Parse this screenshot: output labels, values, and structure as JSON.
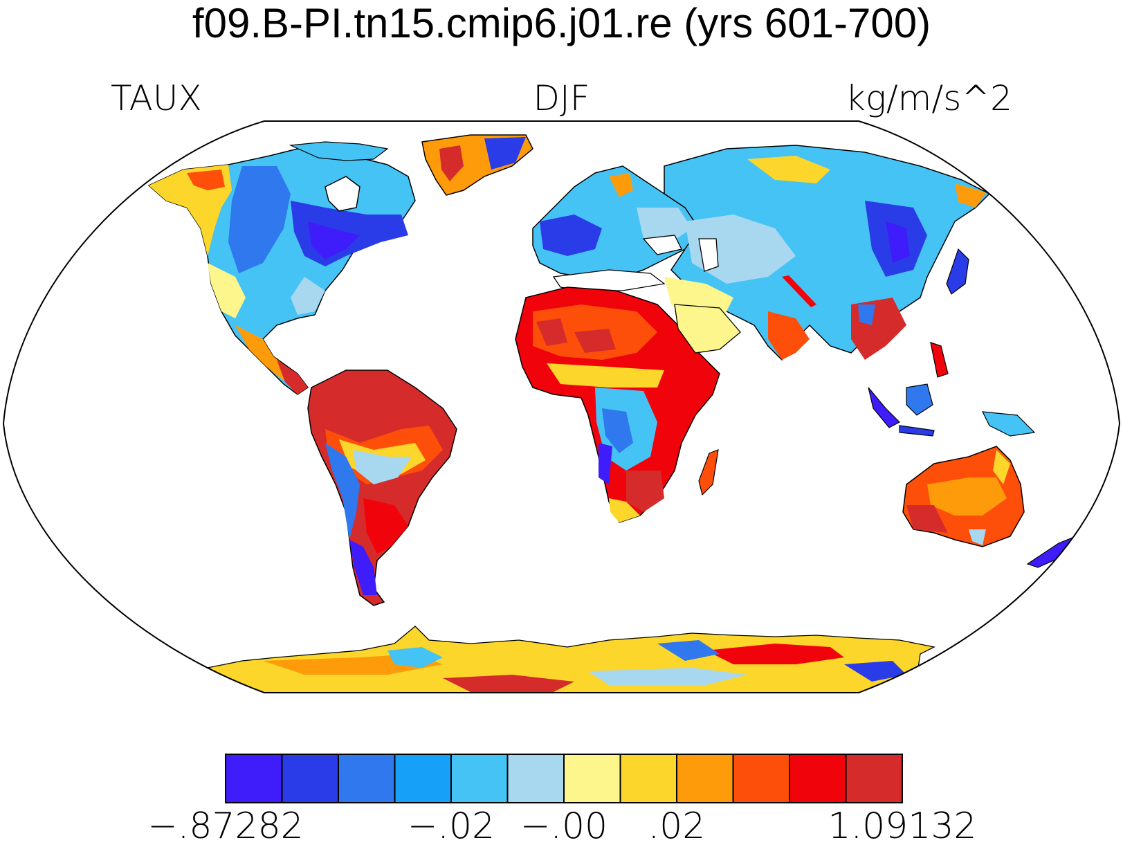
{
  "title": "f09.B-PI.tn15.cmip6.j01.re (yrs 601-700)",
  "subtitle_left": "TAUX",
  "subtitle_center": "DJF",
  "subtitle_right": "kg/m/s^2",
  "colorbar": {
    "colors": [
      "#3f1dfa",
      "#2a3ce8",
      "#2f78ee",
      "#17a0f7",
      "#46c3f5",
      "#a8d8f0",
      "#fdf68c",
      "#fcd62a",
      "#fd9b0a",
      "#fd4f0a",
      "#f0030a",
      "#d62b2b"
    ],
    "labels": [
      {
        "text": "−.87282",
        "boundary": 0
      },
      {
        "text": "−.02",
        "boundary": 4
      },
      {
        "text": "−.00",
        "boundary": 6
      },
      {
        "text": ".02",
        "boundary": 8
      },
      {
        "text": "1.09132",
        "boundary": 12
      }
    ]
  },
  "map": {
    "projection": "Robinson",
    "field": "TAUX",
    "season": "DJF",
    "ocean_color": "#ffffff",
    "coastline_color": "#000000"
  }
}
